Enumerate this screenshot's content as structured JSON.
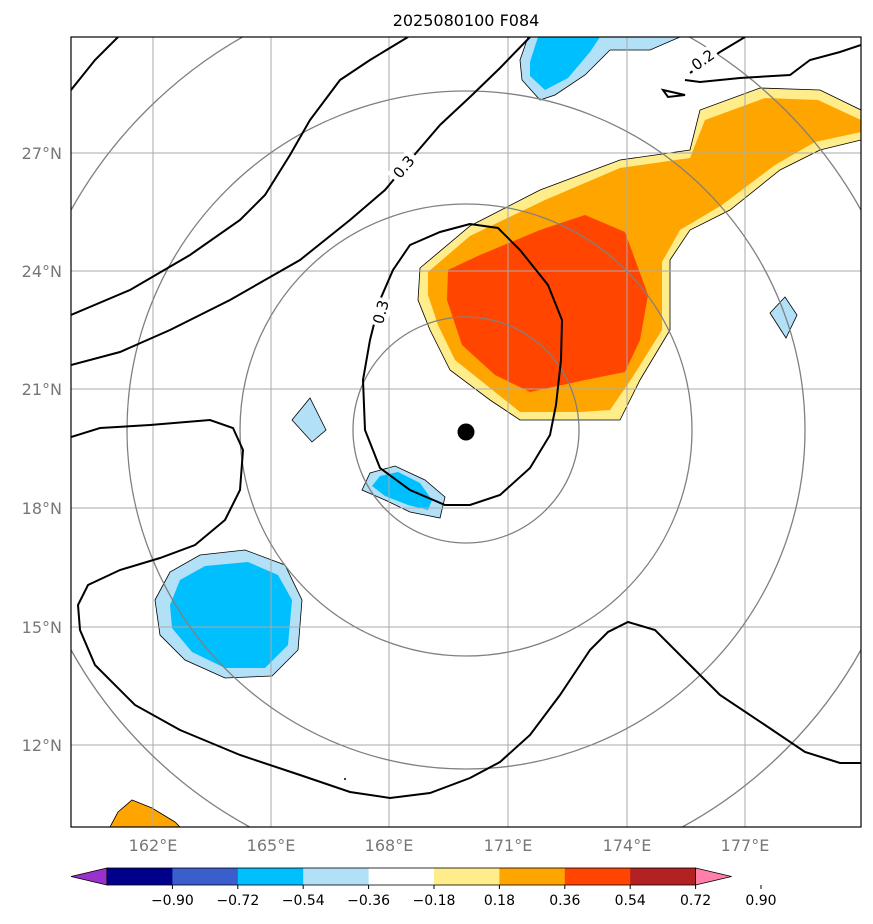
{
  "chart_data": {
    "type": "heatmap",
    "title": "2025080100 F084",
    "map": {
      "lon_range": [
        160,
        180
      ],
      "lat_range": [
        10,
        30
      ],
      "x_ticks": [
        "162°E",
        "165°E",
        "168°E",
        "171°E",
        "174°E",
        "177°E"
      ],
      "x_tick_values": [
        162,
        165,
        168,
        171,
        174,
        177
      ],
      "y_ticks": [
        "12°N",
        "15°N",
        "18°N",
        "21°N",
        "24°N",
        "27°N"
      ],
      "y_tick_values": [
        12,
        15,
        18,
        21,
        24,
        27
      ],
      "grid": true
    },
    "center_marker": {
      "lon": 169.9,
      "lat": 19.9
    },
    "range_rings_deg": [
      2.85,
      5.7,
      8.55,
      11.4
    ],
    "contour_labels": [
      "0.3",
      "0.3",
      "0.2"
    ],
    "colorbar": {
      "ticks": [
        "−0.90",
        "−0.72",
        "−0.54",
        "−0.36",
        "−0.18",
        "0.18",
        "0.36",
        "0.54",
        "0.72",
        "0.90"
      ],
      "colors": [
        "#9932cc",
        "#00008b",
        "#3a5fcd",
        "#00bfff",
        "#b2e0f7",
        "#ffffff",
        "#ffec8b",
        "#ffa500",
        "#ff4500",
        "#b22222",
        "#ff7fa8"
      ]
    }
  }
}
